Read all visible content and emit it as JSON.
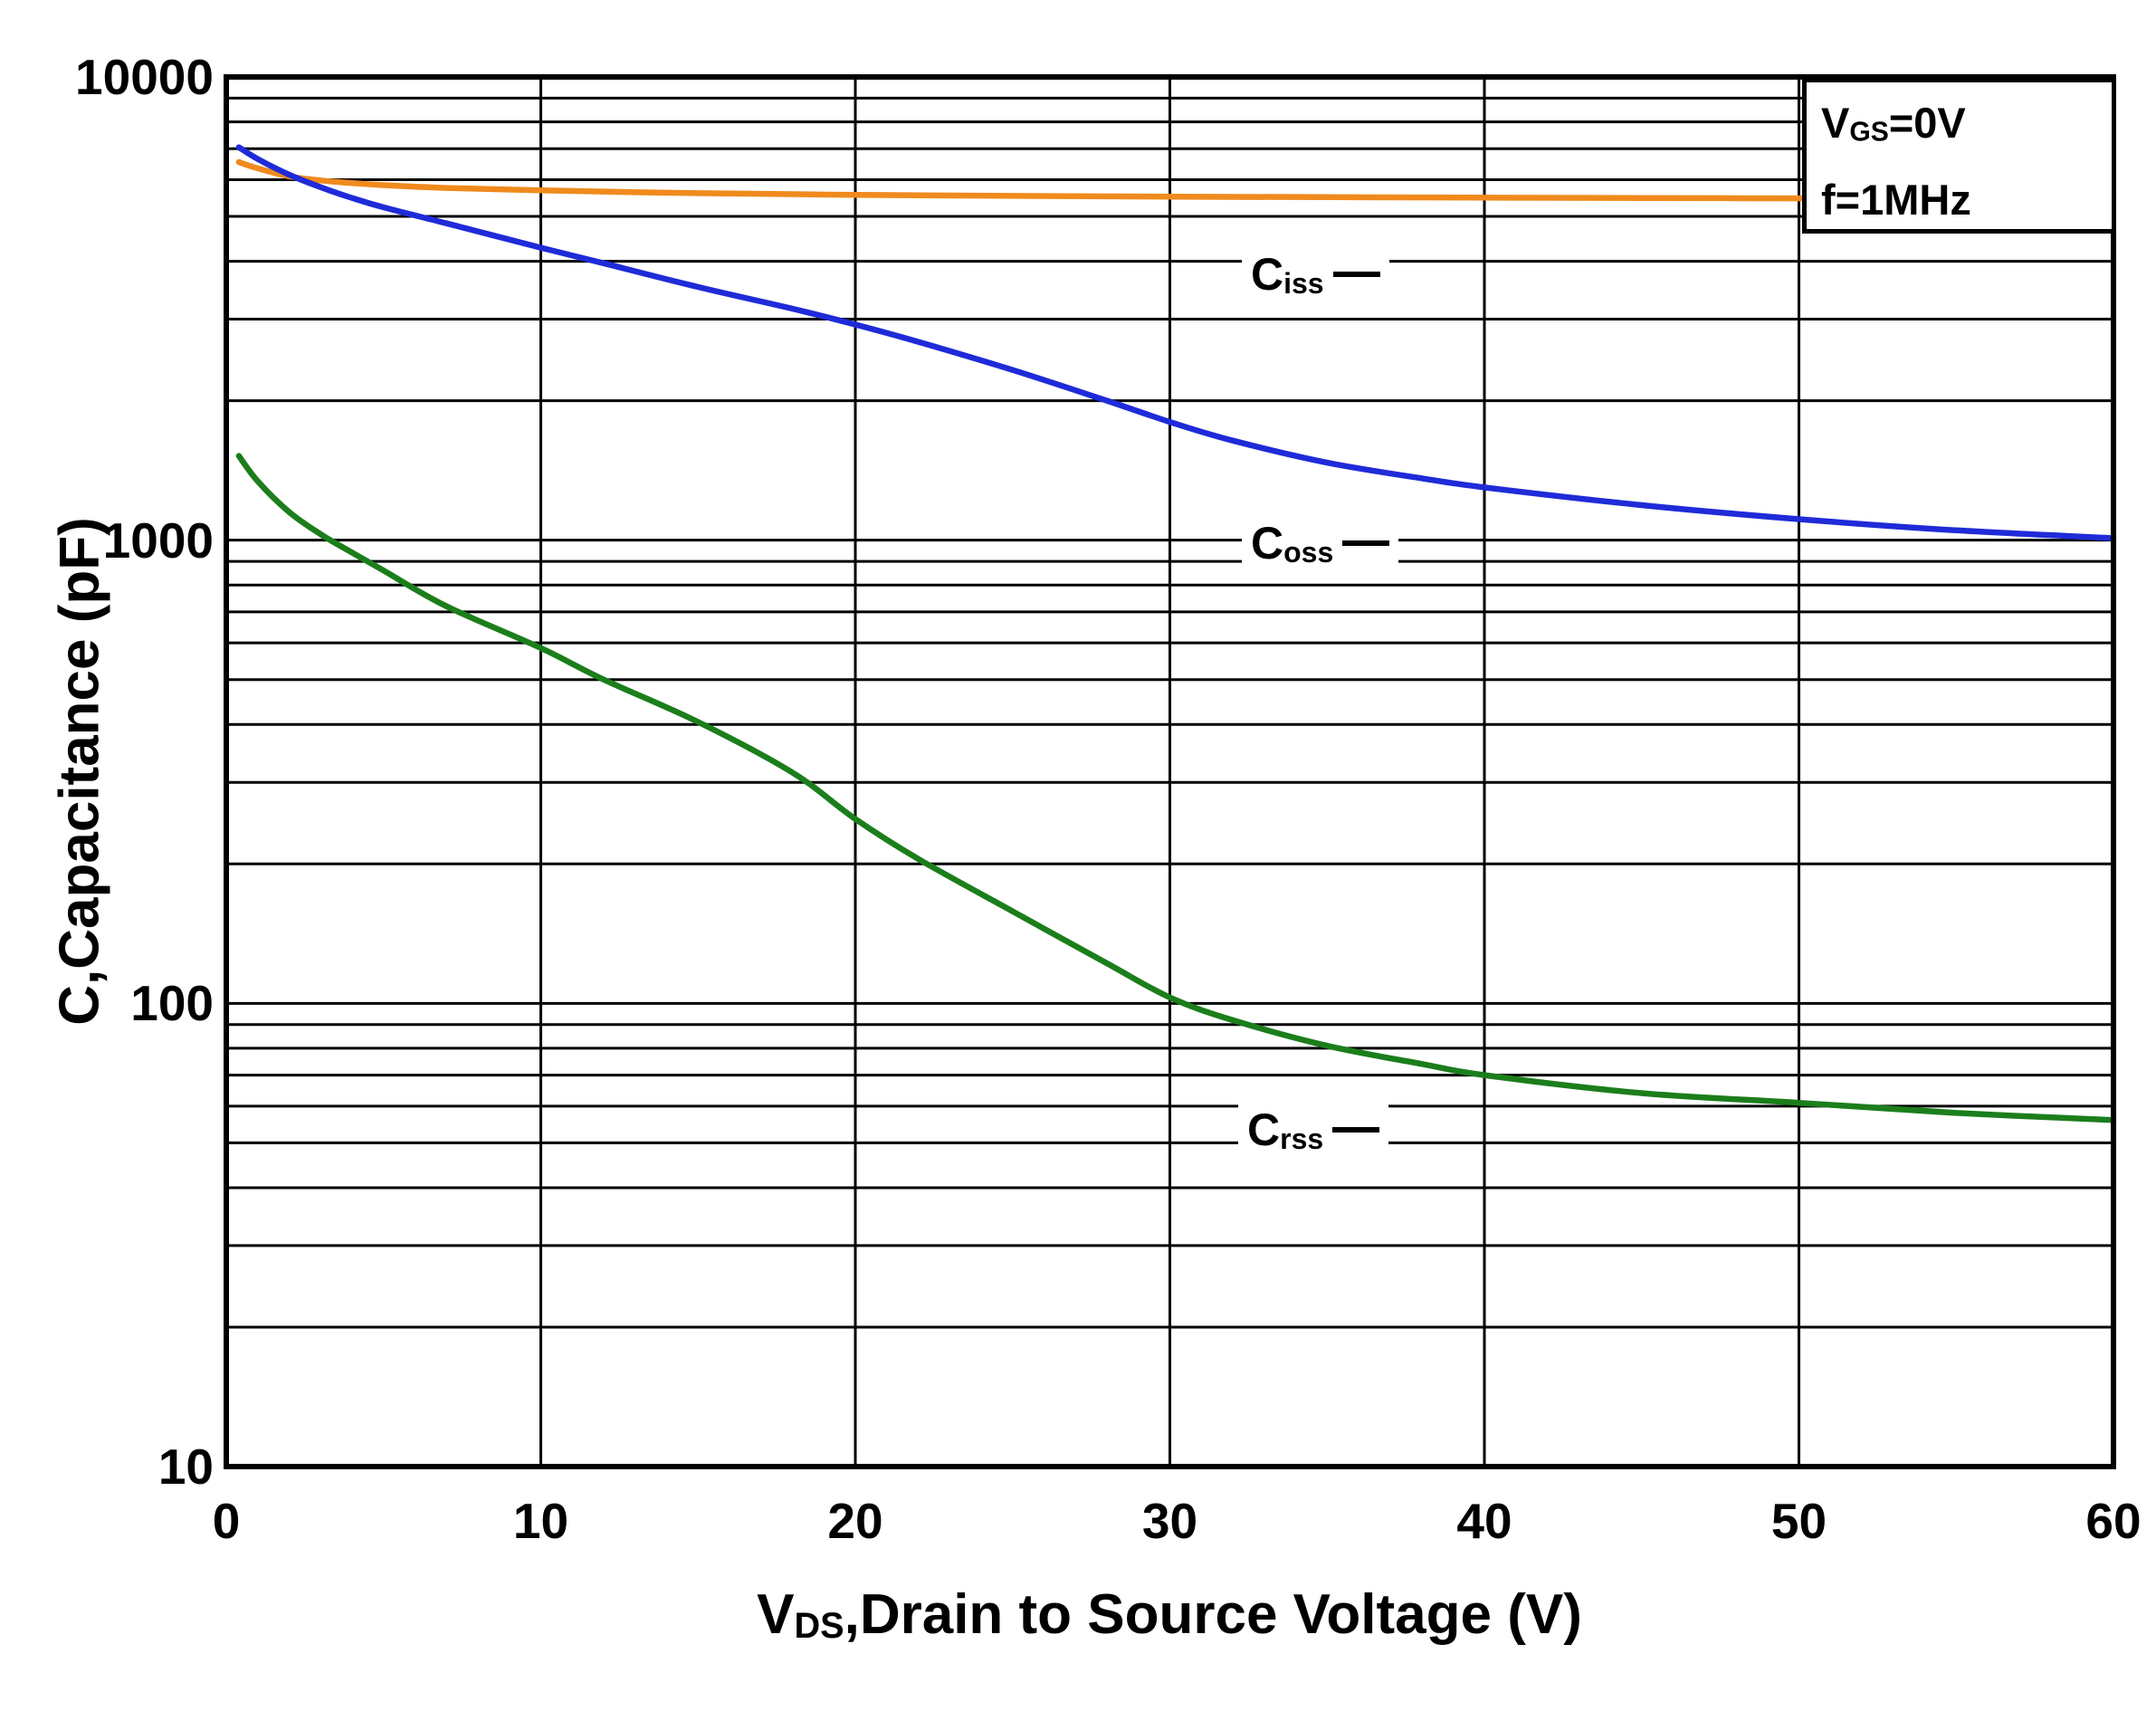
{
  "annotation": {
    "line1": {
      "pre": "V",
      "sub": "GS",
      "post": "=0V"
    },
    "line2": "f=1MHz"
  },
  "axes": {
    "y_title": "C,Capacitance (pF)",
    "x_title": {
      "pre": "V",
      "sub": "DS",
      "post": ",Drain to Source Voltage (V)"
    }
  },
  "chart_data": {
    "type": "line",
    "title": "",
    "conditions": [
      "VGS=0V",
      "f=1MHz"
    ],
    "x_axis": {
      "label": "VDS, Drain to Source Voltage (V)",
      "min": 0,
      "max": 60,
      "ticks": [
        0,
        10,
        20,
        30,
        40,
        50,
        60
      ],
      "scale": "linear"
    },
    "y_axis": {
      "label": "C, Capacitance (pF)",
      "min": 10,
      "max": 10000,
      "ticks": [
        10,
        100,
        1000,
        10000
      ],
      "scale": "log",
      "minor_grid": "log-decades"
    },
    "grid": {
      "vertical_major_step": 10,
      "color": "#000000"
    },
    "legend_position": "inline-curve-labels",
    "series": [
      {
        "name": "Ciss",
        "color": "#F08A1D",
        "label": {
          "base": "C",
          "sub": "iss"
        },
        "label_pos": {
          "x": 1372,
          "y": 303
        },
        "points": [
          [
            0.4,
            6550
          ],
          [
            1,
            6350
          ],
          [
            2,
            6100
          ],
          [
            3,
            5980
          ],
          [
            4,
            5900
          ],
          [
            5,
            5840
          ],
          [
            7,
            5760
          ],
          [
            10,
            5690
          ],
          [
            15,
            5610
          ],
          [
            20,
            5565
          ],
          [
            25,
            5535
          ],
          [
            30,
            5515
          ],
          [
            35,
            5500
          ],
          [
            40,
            5490
          ],
          [
            45,
            5480
          ],
          [
            50,
            5470
          ],
          [
            55,
            5465
          ],
          [
            60,
            5460
          ]
        ]
      },
      {
        "name": "Coss",
        "color": "#1F2BD8",
        "label": {
          "base": "C",
          "sub": "oss"
        },
        "label_pos": {
          "x": 1372,
          "y": 600
        },
        "points": [
          [
            0.4,
            7050
          ],
          [
            1,
            6650
          ],
          [
            2,
            6150
          ],
          [
            3,
            5780
          ],
          [
            4,
            5480
          ],
          [
            5,
            5230
          ],
          [
            7,
            4830
          ],
          [
            10,
            4280
          ],
          [
            12,
            3960
          ],
          [
            15,
            3520
          ],
          [
            18,
            3160
          ],
          [
            20,
            2920
          ],
          [
            22,
            2680
          ],
          [
            25,
            2330
          ],
          [
            28,
            2000
          ],
          [
            30,
            1800
          ],
          [
            32,
            1640
          ],
          [
            35,
            1470
          ],
          [
            38,
            1360
          ],
          [
            40,
            1300
          ],
          [
            45,
            1190
          ],
          [
            50,
            1110
          ],
          [
            55,
            1050
          ],
          [
            60,
            1010
          ]
        ]
      },
      {
        "name": "Crss",
        "color": "#1B7E1B",
        "label": {
          "base": "C",
          "sub": "rss"
        },
        "label_pos": {
          "x": 1368,
          "y": 1248
        },
        "points": [
          [
            0.4,
            1520
          ],
          [
            1,
            1340
          ],
          [
            2,
            1150
          ],
          [
            3,
            1030
          ],
          [
            4,
            940
          ],
          [
            5,
            860
          ],
          [
            7,
            720
          ],
          [
            10,
            585
          ],
          [
            12,
            500
          ],
          [
            15,
            405
          ],
          [
            18,
            315
          ],
          [
            20,
            250
          ],
          [
            22,
            205
          ],
          [
            25,
            158
          ],
          [
            28,
            122
          ],
          [
            30,
            103
          ],
          [
            32,
            92
          ],
          [
            35,
            81
          ],
          [
            38,
            74
          ],
          [
            40,
            70
          ],
          [
            45,
            64
          ],
          [
            50,
            61
          ],
          [
            55,
            58
          ],
          [
            60,
            56
          ]
        ]
      }
    ]
  }
}
